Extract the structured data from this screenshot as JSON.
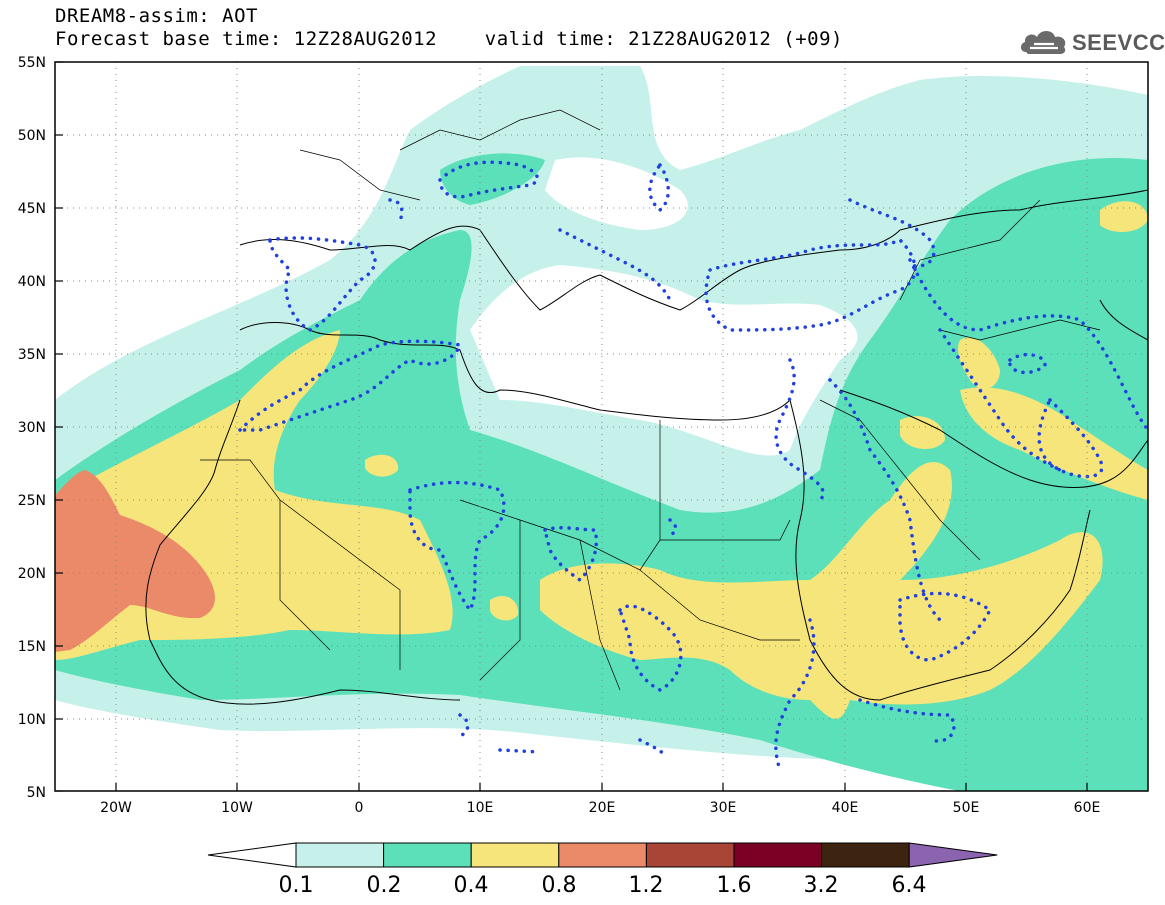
{
  "title": {
    "line1": "DREAM8-assim: AOT",
    "line2": "Forecast base time: 12Z28AUG2012    valid time: 21Z28AUG2012 (+09)"
  },
  "logo": {
    "text": "SEEVCCC",
    "icon": "cloud-icon"
  },
  "map": {
    "lon_range": [
      -25,
      65
    ],
    "lat_range": [
      5,
      55
    ],
    "lat_ticks": [
      "5N",
      "10N",
      "15N",
      "20N",
      "25N",
      "30N",
      "35N",
      "40N",
      "45N",
      "50N",
      "55N"
    ],
    "lon_ticks": [
      "20W",
      "10W",
      "0",
      "10E",
      "20E",
      "30E",
      "40E",
      "50E",
      "60E"
    ],
    "grid": "dotted",
    "projection": "latitude-longitude"
  },
  "colorbar": {
    "levels": [
      "0.1",
      "0.2",
      "0.4",
      "0.8",
      "1.2",
      "1.6",
      "3.2",
      "6.4"
    ],
    "colors": [
      "#ffffff",
      "#c6f1ea",
      "#5ce0b9",
      "#f6e57a",
      "#ea8a69",
      "#a84537",
      "#7a0026",
      "#3d2410",
      "#8b64b0"
    ]
  },
  "overlay": {
    "contour_color": "#2040e0",
    "contour_style": "dotted"
  }
}
